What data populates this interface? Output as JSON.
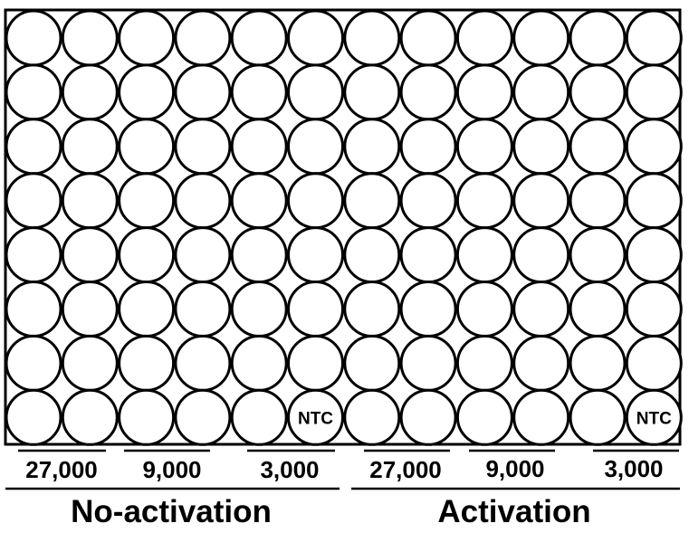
{
  "plate": {
    "rows": 8,
    "columns": 12,
    "ntc_label": "NTC",
    "ntc_wells": [
      {
        "row": 8,
        "column": 6
      },
      {
        "row": 8,
        "column": 12
      }
    ]
  },
  "groups": [
    {
      "label": "No-activation",
      "concentrations": [
        "27,000",
        "9,000",
        "3,000"
      ]
    },
    {
      "label": "Activation",
      "concentrations": [
        "27,000",
        "9,000",
        "3,000"
      ]
    }
  ]
}
